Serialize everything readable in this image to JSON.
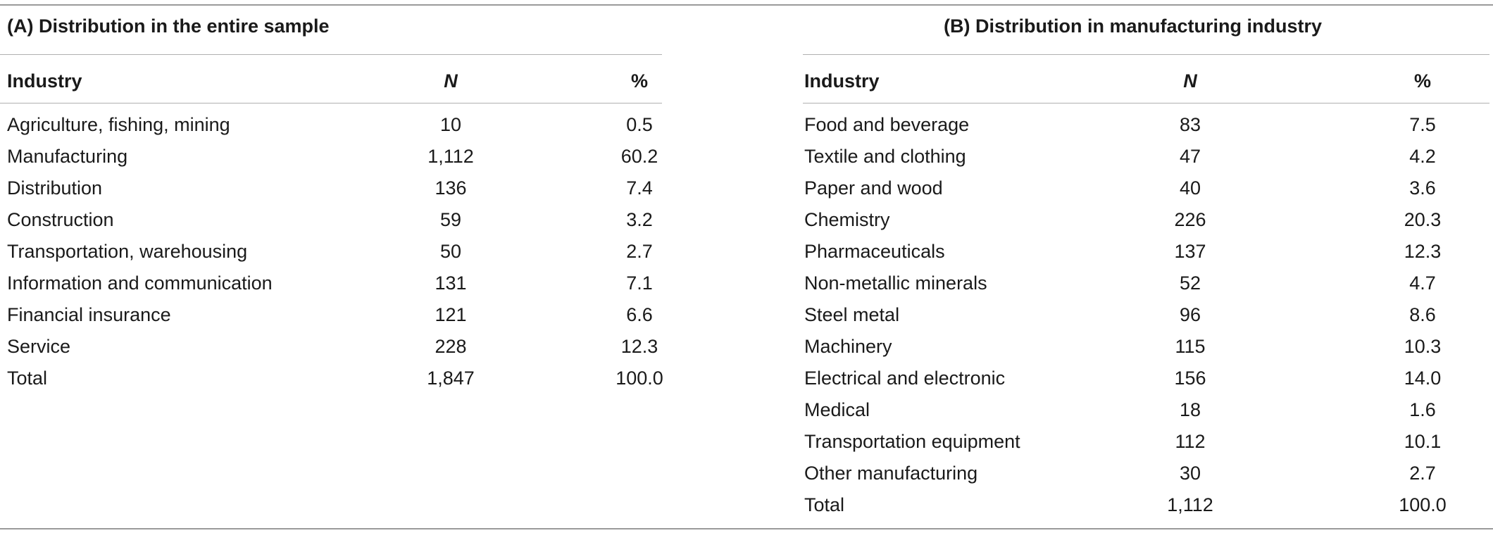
{
  "panel_a": {
    "caption": "(A) Distribution in the entire sample",
    "headers": {
      "industry": "Industry",
      "n": "N",
      "pct": "%"
    },
    "rows": [
      {
        "industry": "Agriculture, fishing, mining",
        "n": "10",
        "pct": "0.5"
      },
      {
        "industry": "Manufacturing",
        "n": "1,112",
        "pct": "60.2"
      },
      {
        "industry": "Distribution",
        "n": "136",
        "pct": "7.4"
      },
      {
        "industry": "Construction",
        "n": "59",
        "pct": "3.2"
      },
      {
        "industry": "Transportation, warehousing",
        "n": "50",
        "pct": "2.7"
      },
      {
        "industry": "Information and communication",
        "n": "131",
        "pct": "7.1"
      },
      {
        "industry": "Financial insurance",
        "n": "121",
        "pct": "6.6"
      },
      {
        "industry": "Service",
        "n": "228",
        "pct": "12.3"
      },
      {
        "industry": "Total",
        "n": "1,847",
        "pct": "100.0"
      }
    ]
  },
  "panel_b": {
    "caption": "(B) Distribution in manufacturing industry",
    "headers": {
      "industry": "Industry",
      "n": "N",
      "pct": "%"
    },
    "rows": [
      {
        "industry": "Food and beverage",
        "n": "83",
        "pct": "7.5"
      },
      {
        "industry": "Textile and clothing",
        "n": "47",
        "pct": "4.2"
      },
      {
        "industry": "Paper and wood",
        "n": "40",
        "pct": "3.6"
      },
      {
        "industry": "Chemistry",
        "n": "226",
        "pct": "20.3"
      },
      {
        "industry": "Pharmaceuticals",
        "n": "137",
        "pct": "12.3"
      },
      {
        "industry": "Non-metallic minerals",
        "n": "52",
        "pct": "4.7"
      },
      {
        "industry": "Steel metal",
        "n": "96",
        "pct": "8.6"
      },
      {
        "industry": "Machinery",
        "n": "115",
        "pct": "10.3"
      },
      {
        "industry": "Electrical and electronic",
        "n": "156",
        "pct": "14.0"
      },
      {
        "industry": "Medical",
        "n": "18",
        "pct": "1.6"
      },
      {
        "industry": "Transportation equipment",
        "n": "112",
        "pct": "10.1"
      },
      {
        "industry": "Other manufacturing",
        "n": "30",
        "pct": "2.7"
      },
      {
        "industry": "Total",
        "n": "1,112",
        "pct": "100.0"
      }
    ]
  }
}
